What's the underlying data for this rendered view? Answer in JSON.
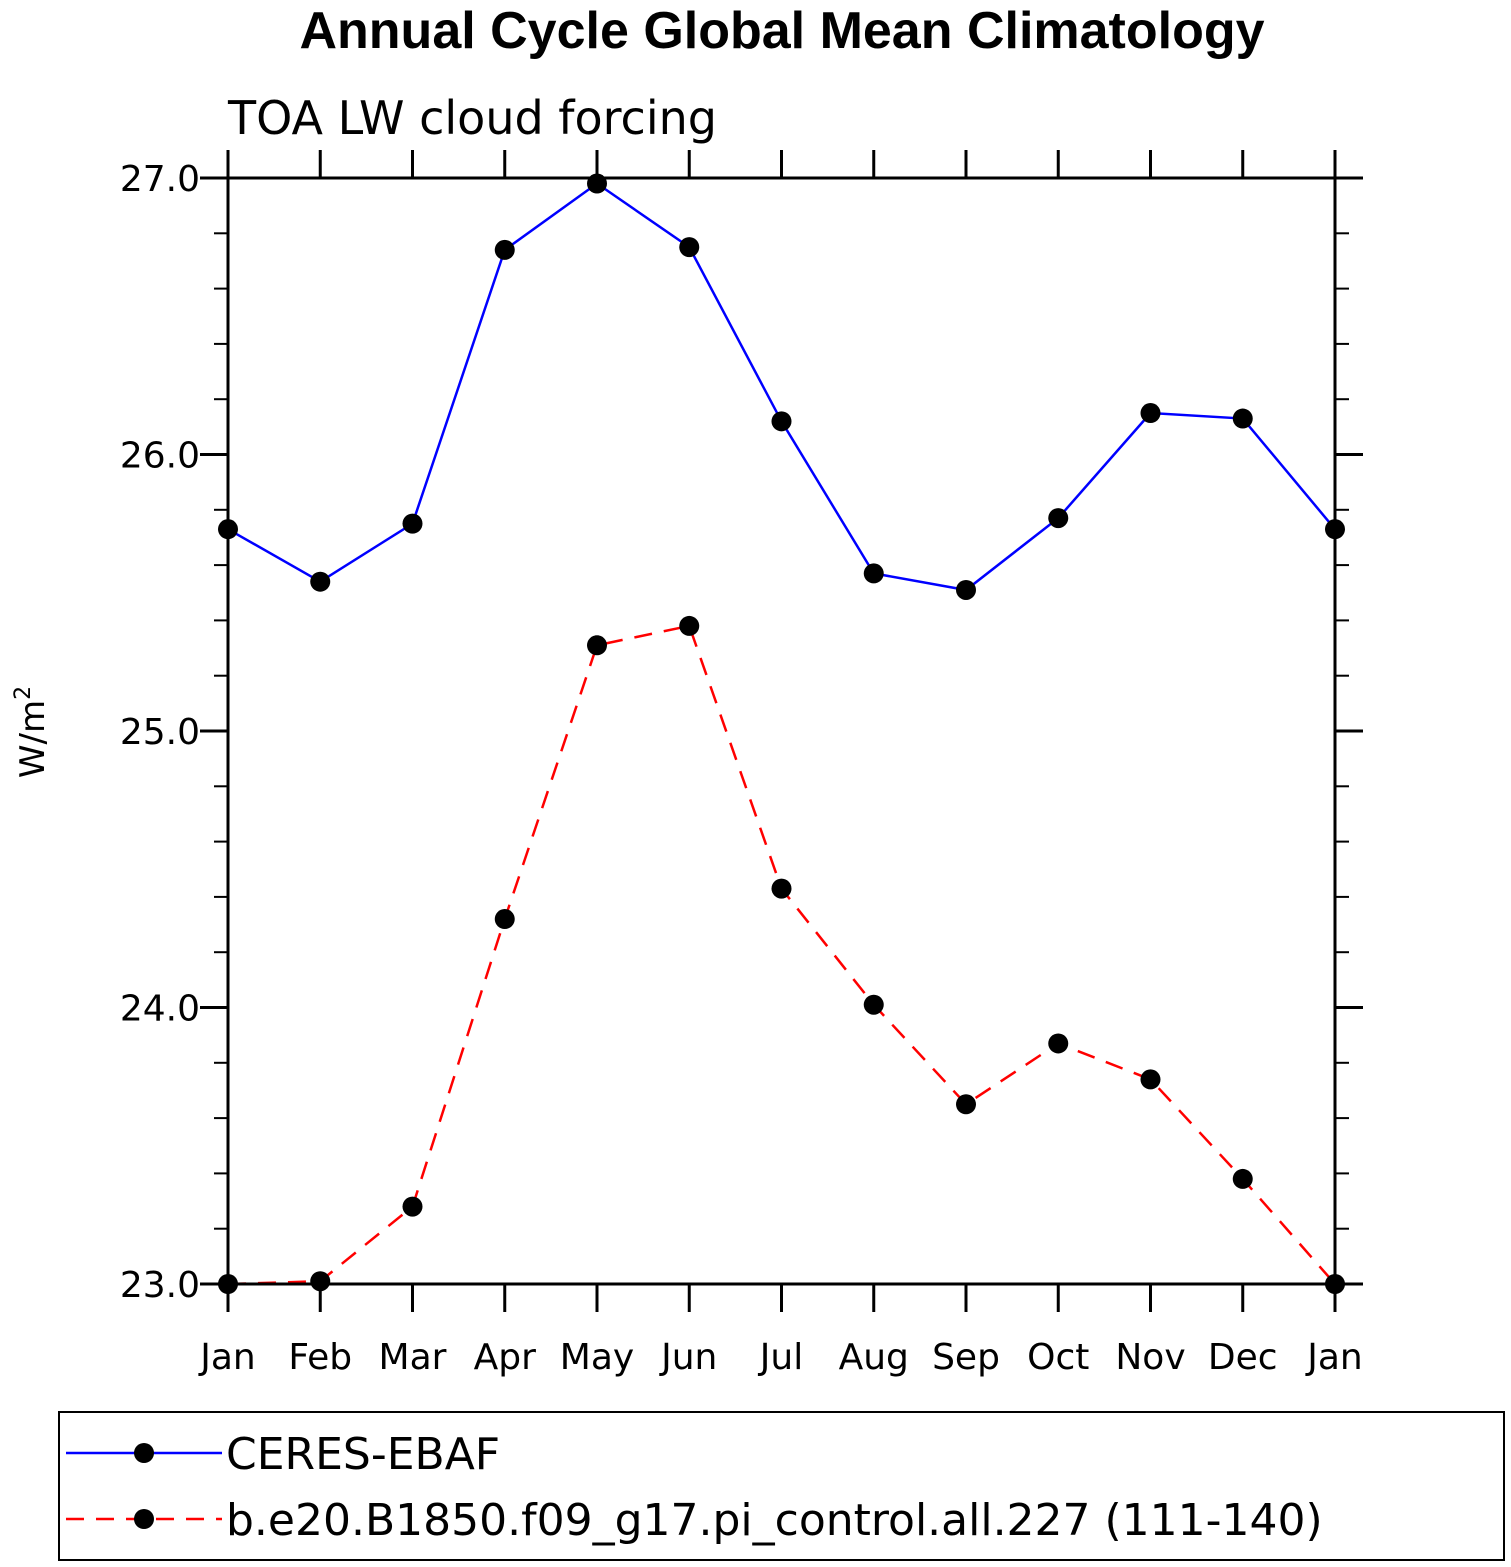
{
  "chart_data": {
    "type": "line",
    "title": "Annual Cycle Global Mean Climatology",
    "subtitle": "TOA LW cloud forcing",
    "ylabel": "W/m",
    "ylabel_superscript": "2",
    "ylim": [
      23.0,
      27.0
    ],
    "yticks": [
      "23.0",
      "24.0",
      "25.0",
      "26.0",
      "27.0"
    ],
    "categories": [
      "Jan",
      "Feb",
      "Mar",
      "Apr",
      "May",
      "Jun",
      "Jul",
      "Aug",
      "Sep",
      "Oct",
      "Nov",
      "Dec",
      "Jan"
    ],
    "series": [
      {
        "name": "CERES-EBAF",
        "color": "#0000ff",
        "line_style": "solid",
        "marker": "filled-circle",
        "values": [
          25.73,
          25.54,
          25.75,
          26.74,
          26.98,
          26.75,
          26.12,
          25.57,
          25.51,
          25.77,
          26.15,
          26.13,
          25.73
        ]
      },
      {
        "name": "b.e20.B1850.f09_g17.pi_control.all.227 (111-140)",
        "color": "#ff0000",
        "line_style": "dashed",
        "marker": "filled-circle",
        "values": [
          23.0,
          23.01,
          23.28,
          24.32,
          25.31,
          25.38,
          24.43,
          24.01,
          23.65,
          23.87,
          23.74,
          23.38,
          23.0
        ]
      }
    ],
    "legend_position": "bottom"
  }
}
